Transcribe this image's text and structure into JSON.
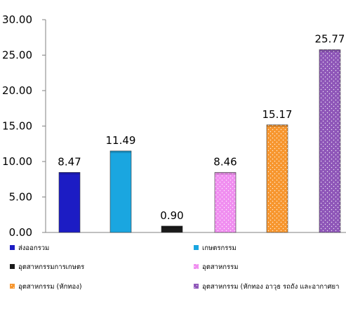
{
  "chart_data": {
    "type": "bar",
    "title": "",
    "xlabel": "",
    "ylabel": "",
    "ylim": [
      0,
      30
    ],
    "yticks": [
      "0.00",
      "5.00",
      "10.00",
      "15.00",
      "20.00",
      "25.00",
      "30.00"
    ],
    "grid": false,
    "legend_position": "bottom",
    "categories": [
      "ส่งออกรวม",
      "เกษตรกรรม",
      "อุตสาหกรรมการเกษตร",
      "อุตสาหกรรม",
      "อุตสาหกรรม (หักทอง)",
      "อุตสาหกรรม (หักทอง อาวุธ รถถัง และอากาศยา"
    ],
    "values": [
      8.47,
      11.49,
      0.9,
      8.46,
      15.17,
      25.77
    ],
    "data_labels": [
      "8.47",
      "11.49",
      "0.90",
      "8.46",
      "15.17",
      "25.77"
    ],
    "colors": [
      "#1c1cc4",
      "#1aa6e0",
      "#1a1a1a",
      "#f08ef0",
      "#f7962e",
      "#8e56b8"
    ]
  }
}
